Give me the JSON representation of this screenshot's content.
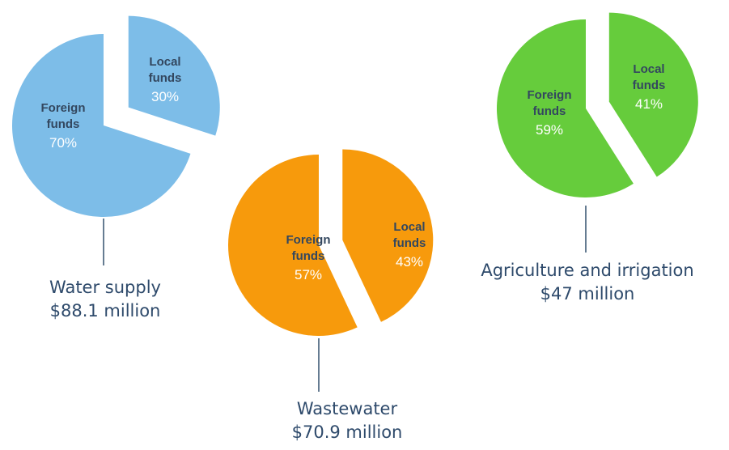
{
  "chart_data": [
    {
      "type": "pie",
      "caption": [
        "Water supply",
        "$88.1 million"
      ],
      "total": 88.1,
      "unit": "$ million",
      "color": "#7dbde8",
      "slices": [
        {
          "name": "Foreign funds",
          "name_lines": [
            "Foreign",
            "funds"
          ],
          "value": 70,
          "label": "70%",
          "exploded": false
        },
        {
          "name": "Local funds",
          "name_lines": [
            "Local",
            "funds"
          ],
          "value": 30,
          "label": "30%",
          "exploded": true
        }
      ]
    },
    {
      "type": "pie",
      "caption": [
        "Wastewater",
        "$70.9 million"
      ],
      "total": 70.9,
      "unit": "$ million",
      "color": "#f79a0c",
      "slices": [
        {
          "name": "Foreign funds",
          "name_lines": [
            "Foreign",
            "funds"
          ],
          "value": 57,
          "label": "57%",
          "exploded": false
        },
        {
          "name": "Local funds",
          "name_lines": [
            "Local",
            "funds"
          ],
          "value": 43,
          "label": "43%",
          "exploded": true
        }
      ]
    },
    {
      "type": "pie",
      "caption": [
        "Agriculture and irrigation",
        "$47 million"
      ],
      "total": 47,
      "unit": "$ million",
      "color": "#66cc3c",
      "slices": [
        {
          "name": "Foreign funds",
          "name_lines": [
            "Foreign",
            "funds"
          ],
          "value": 59,
          "label": "59%",
          "exploded": false
        },
        {
          "name": "Local funds",
          "name_lines": [
            "Local",
            "funds"
          ],
          "value": 41,
          "label": "41%",
          "exploded": true
        }
      ]
    }
  ]
}
